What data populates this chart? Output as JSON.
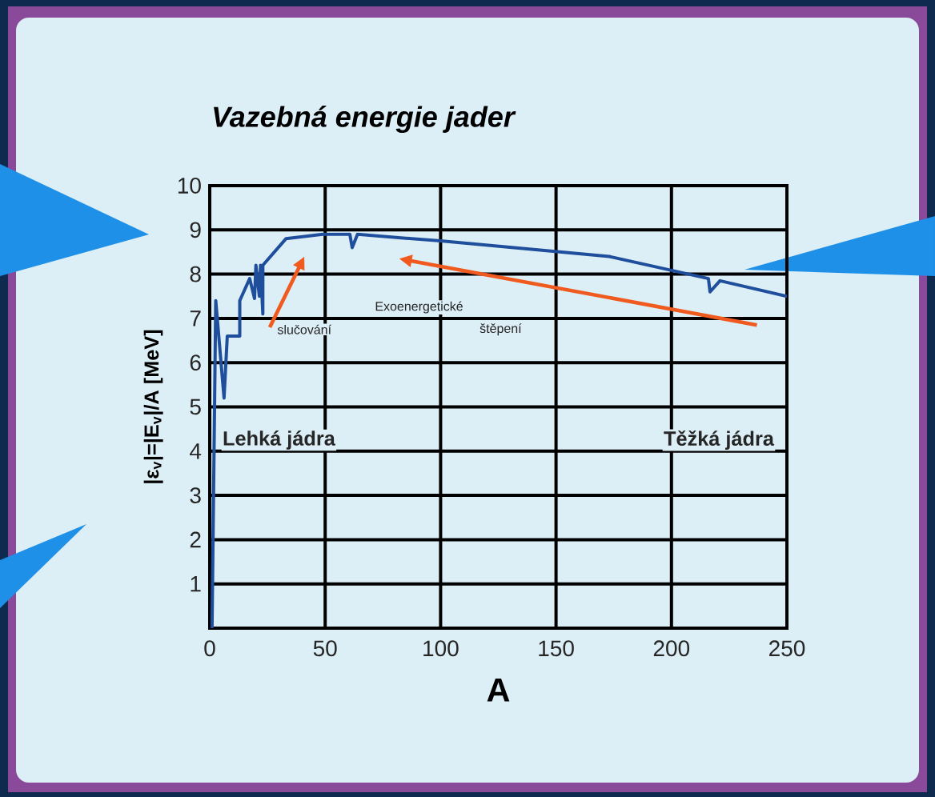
{
  "chart_data": {
    "type": "line",
    "title": "**Vazebná energie jader**",
    "xlabel": "A",
    "ylabel": "|ε$_{v}$|=|E$_{v}$|/A   [MeV]",
    "x": [
      1,
      2.6,
      6.2,
      7.6,
      13,
      13,
      17.3,
      19.4,
      20,
      21.5,
      22,
      23,
      23,
      33,
      49,
      60.7,
      61.7,
      64,
      100,
      173,
      216,
      216.7,
      221,
      250
    ],
    "series": [
      {
        "color": "#1f4f9c",
        "values": [
          0,
          7.4,
          5.2,
          6.6,
          6.6,
          7.4,
          7.9,
          7.45,
          8.2,
          7.5,
          8.2,
          7.1,
          8.2,
          8.8,
          8.9,
          8.9,
          8.6,
          8.9,
          8.75,
          8.4,
          7.9,
          7.6,
          7.85,
          7.5
        ]
      }
    ],
    "xlim": [
      0,
      250
    ],
    "xticks": [
      0,
      50,
      100,
      150,
      200,
      250
    ],
    "ylim": [
      0,
      10
    ],
    "yticks": [
      1,
      2,
      3,
      4,
      5,
      6,
      7,
      8,
      9,
      10
    ],
    "grid": true,
    "marker": "none",
    "line_style": "solid",
    "annotations": [
      "Lehká jádra",
      "Těžká jádra",
      "Exoenergetické",
      "slučování",
      "štěpení"
    ]
  }
}
